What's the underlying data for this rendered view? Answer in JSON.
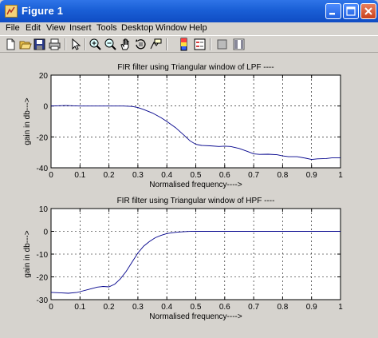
{
  "window": {
    "title": "Figure 1"
  },
  "menu": [
    "File",
    "Edit",
    "View",
    "Insert",
    "Tools",
    "Desktop",
    "Window",
    "Help"
  ],
  "toolbar_icons": [
    "new-figure-icon",
    "open-file-icon",
    "save-icon",
    "print-icon",
    "edit-plot-arrow-icon",
    "zoom-in-icon",
    "zoom-out-icon",
    "pan-hand-icon",
    "rotate-3d-icon",
    "data-cursor-icon",
    "colorbar-icon",
    "legend-icon",
    "hide-plot-tools-icon",
    "show-plot-tools-icon"
  ],
  "chart_data": [
    {
      "type": "line",
      "title": "FIR filter using Triangular window of LPF ----",
      "xlabel": "Normalised frequency---->",
      "ylabel": "gain in db--->",
      "xlim": [
        0,
        1
      ],
      "ylim": [
        -40,
        20
      ],
      "xticks": [
        "0",
        "0.1",
        "0.2",
        "0.3",
        "0.4",
        "0.5",
        "0.6",
        "0.7",
        "0.8",
        "0.9",
        "1"
      ],
      "yticks": [
        "20",
        "0",
        "-20",
        "-40"
      ],
      "grid": true,
      "line_color": "#00008b",
      "series": [
        {
          "x": [
            0,
            0.05,
            0.1,
            0.15,
            0.2,
            0.25,
            0.28,
            0.3,
            0.32,
            0.35,
            0.38,
            0.4,
            0.43,
            0.46,
            0.48,
            0.5,
            0.52,
            0.55,
            0.58,
            0.6,
            0.62,
            0.65,
            0.68,
            0.7,
            0.72,
            0.75,
            0.78,
            0.8,
            0.82,
            0.85,
            0.88,
            0.9,
            0.92,
            0.95,
            0.97,
            1.0
          ],
          "y": [
            0,
            0.3,
            0,
            0,
            0,
            0,
            -0.3,
            -1,
            -2.3,
            -4.5,
            -7.5,
            -10,
            -14,
            -19,
            -22.5,
            -24.8,
            -25.5,
            -25.8,
            -26.2,
            -26,
            -26.2,
            -27.5,
            -29.5,
            -31,
            -31.3,
            -31.2,
            -31.5,
            -32.3,
            -32.8,
            -32.8,
            -33.8,
            -34.6,
            -34.2,
            -34,
            -33.6,
            -33.6
          ]
        }
      ]
    },
    {
      "type": "line",
      "title": "FIR filter using Triangular window of HPF ----",
      "xlabel": "Normalised frequency---->",
      "ylabel": "gain in db--->",
      "xlim": [
        0,
        1
      ],
      "ylim": [
        -30,
        10
      ],
      "xticks": [
        "0",
        "0.1",
        "0.2",
        "0.3",
        "0.4",
        "0.5",
        "0.6",
        "0.7",
        "0.8",
        "0.9",
        "1"
      ],
      "yticks": [
        "10",
        "0",
        "-10",
        "-20",
        "-30"
      ],
      "grid": true,
      "line_color": "#00008b",
      "series": [
        {
          "x": [
            0,
            0.03,
            0.06,
            0.09,
            0.1,
            0.13,
            0.16,
            0.18,
            0.2,
            0.22,
            0.24,
            0.26,
            0.28,
            0.3,
            0.32,
            0.34,
            0.36,
            0.38,
            0.4,
            0.42,
            0.44,
            0.46,
            0.48,
            0.5,
            0.55,
            0.6,
            0.65,
            0.7,
            0.8,
            0.9,
            1.0
          ],
          "y": [
            -26.8,
            -27,
            -27.2,
            -26.8,
            -26.5,
            -25.5,
            -24.5,
            -24.2,
            -24.4,
            -23.2,
            -20.8,
            -17.5,
            -13.5,
            -9.5,
            -6.5,
            -4.5,
            -2.8,
            -1.8,
            -1.0,
            -0.6,
            -0.3,
            -0.15,
            -0.05,
            0,
            0,
            0,
            0,
            0,
            0,
            0,
            0
          ]
        }
      ]
    }
  ]
}
